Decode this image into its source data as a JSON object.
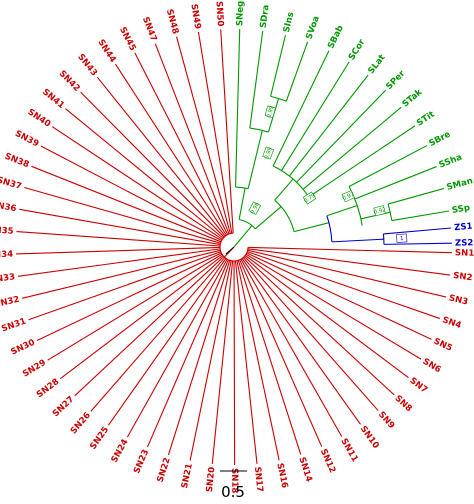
{
  "tree": {
    "clades": [
      {
        "name": "SN",
        "color": "#cc0000"
      },
      {
        "name": "S",
        "color": "#009900"
      },
      {
        "name": "Z",
        "color": "#0000cc"
      }
    ],
    "sn_taxa": [
      "SN1",
      "SN2",
      "SN3",
      "SN4",
      "SN5",
      "SN6",
      "SN7",
      "SN8",
      "SN9",
      "SN10",
      "SN11",
      "SN12",
      "SN14",
      "SN16",
      "SN17",
      "SN18",
      "SN20",
      "SN21",
      "SN22",
      "SN23",
      "SN24",
      "SN25",
      "SN26",
      "SN27",
      "SN28",
      "SN29",
      "SN30",
      "SN31",
      "SN32",
      "SN33",
      "SN34",
      "SN35",
      "SN36",
      "SN37",
      "SN38",
      "SN39",
      "SN40",
      "SN41",
      "SN42",
      "SN43",
      "SN44",
      "SN45",
      "SN47",
      "SN48",
      "SN49",
      "SN50"
    ],
    "s_taxa": [
      "SNeg",
      "SDra",
      "SIns",
      "SVoa",
      "SBab",
      "SCor",
      "SLat",
      "SPer",
      "STak",
      "STit",
      "SBre",
      "SSha",
      "SMan",
      "SSp"
    ],
    "z_taxa": [
      "ZS1",
      "ZS2"
    ],
    "support_values": [
      "0.96",
      "0.99",
      "0.99",
      "0.79",
      "0.97",
      "0.92",
      "1"
    ]
  },
  "scale_bar": {
    "value": "0.5"
  }
}
